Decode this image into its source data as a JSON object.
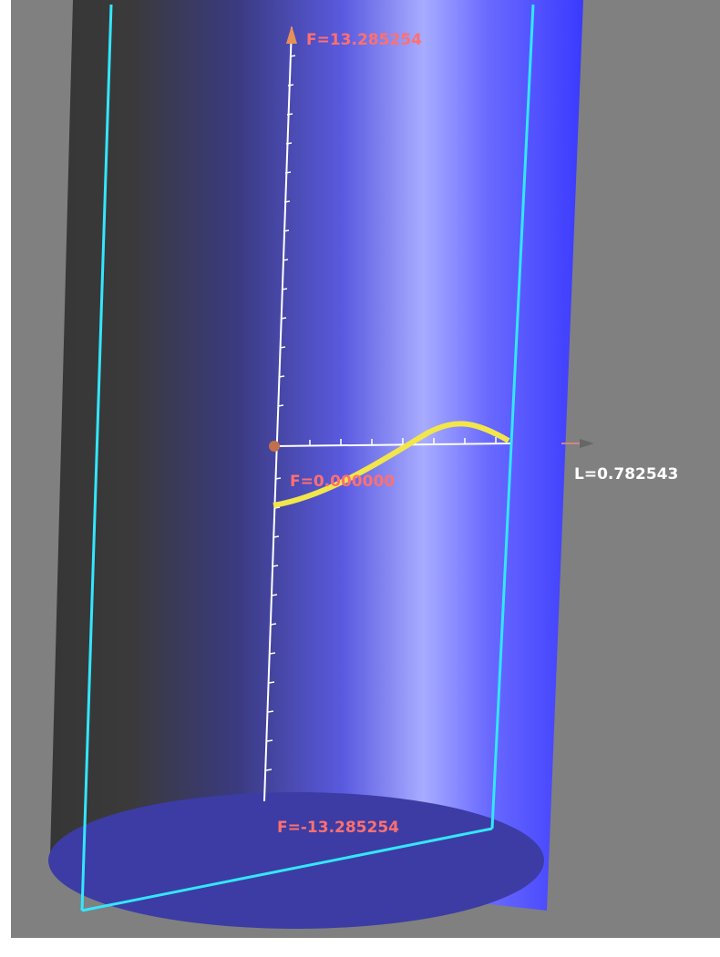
{
  "labels": {
    "f_max": "F=13.285254",
    "f_zero": "F=0.000000",
    "f_min": "F=-13.285254",
    "length": "L=0.782543"
  }
}
